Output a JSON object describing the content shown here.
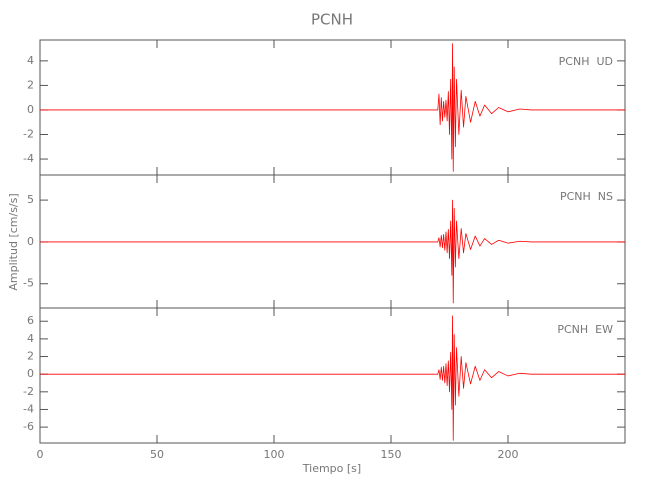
{
  "title": "PCNH",
  "x_label": "Tiempo [s]",
  "y_label": "Amplitud [cm/s/s]",
  "chart_data": [
    {
      "type": "line",
      "label": "PCNH  UD",
      "color": "#ff0000",
      "x": [
        0,
        170,
        170.5,
        171,
        171.5,
        172,
        172.5,
        173,
        173.5,
        174,
        174.5,
        175,
        175.5,
        176,
        176.3,
        176.6,
        177,
        177.5,
        178,
        179,
        180,
        181,
        182,
        184,
        186,
        188,
        190,
        193,
        196,
        200,
        205,
        210,
        250
      ],
      "values": [
        0,
        0,
        1.3,
        -1.2,
        1.0,
        -0.9,
        0.7,
        -0.6,
        0.8,
        -0.9,
        1.5,
        -2,
        2.5,
        -4,
        5.4,
        -5.0,
        3.5,
        -3,
        2.5,
        -2,
        1.6,
        -1.4,
        1.1,
        -1,
        0.7,
        -0.5,
        0.4,
        -0.3,
        0.2,
        -0.15,
        0.08,
        0,
        0
      ],
      "xlim": [
        0,
        250
      ],
      "xticks": [
        0,
        50,
        100,
        150,
        200
      ],
      "ylim": [
        -5.3,
        5.7
      ],
      "yticks": [
        -4,
        -2,
        0,
        2,
        4
      ]
    },
    {
      "type": "line",
      "label": "PCNH  NS",
      "color": "#ff0000",
      "x": [
        0,
        170,
        170.5,
        171,
        171.5,
        172,
        172.5,
        173,
        173.5,
        174,
        174.5,
        175,
        175.5,
        176,
        176.3,
        176.6,
        177,
        177.5,
        178,
        179,
        180,
        181,
        182,
        184,
        186,
        188,
        190,
        193,
        196,
        200,
        205,
        210,
        250
      ],
      "values": [
        0,
        0,
        0.5,
        -0.6,
        0.8,
        -0.7,
        0.9,
        -1,
        1.2,
        -1.3,
        1.5,
        -2,
        2.5,
        -4,
        5.0,
        -7.3,
        4,
        -3,
        2.5,
        -2,
        1.6,
        -1.3,
        1.0,
        -0.9,
        0.7,
        -0.5,
        0.4,
        -0.3,
        0.2,
        -0.15,
        0.08,
        0,
        0
      ],
      "xlim": [
        0,
        250
      ],
      "xticks": [
        0,
        50,
        100,
        150,
        200
      ],
      "ylim": [
        -7.9,
        8
      ],
      "yticks": [
        -5,
        0,
        5
      ]
    },
    {
      "type": "line",
      "label": "PCNH  EW",
      "color": "#ff0000",
      "x": [
        0,
        170,
        170.5,
        171,
        171.5,
        172,
        172.5,
        173,
        173.5,
        174,
        174.5,
        175,
        175.5,
        176,
        176.3,
        176.6,
        177,
        177.5,
        178,
        179,
        180,
        181,
        182,
        184,
        186,
        188,
        190,
        193,
        196,
        200,
        205,
        210,
        250
      ],
      "values": [
        0,
        0,
        0.5,
        -0.6,
        0.8,
        -0.7,
        0.9,
        -1,
        1.2,
        -1.3,
        1.5,
        -2,
        2.5,
        -4,
        6.6,
        -7.5,
        4.5,
        -3.5,
        3,
        -2.5,
        2,
        -1.6,
        1.3,
        -1.1,
        0.9,
        -0.7,
        0.5,
        -0.4,
        0.3,
        -0.2,
        0.1,
        0,
        0
      ],
      "xlim": [
        0,
        250
      ],
      "xticks": [
        0,
        50,
        100,
        150,
        200
      ],
      "ylim": [
        -7.8,
        7.5
      ],
      "yticks": [
        -6,
        -4,
        -2,
        0,
        2,
        4,
        6
      ]
    }
  ]
}
